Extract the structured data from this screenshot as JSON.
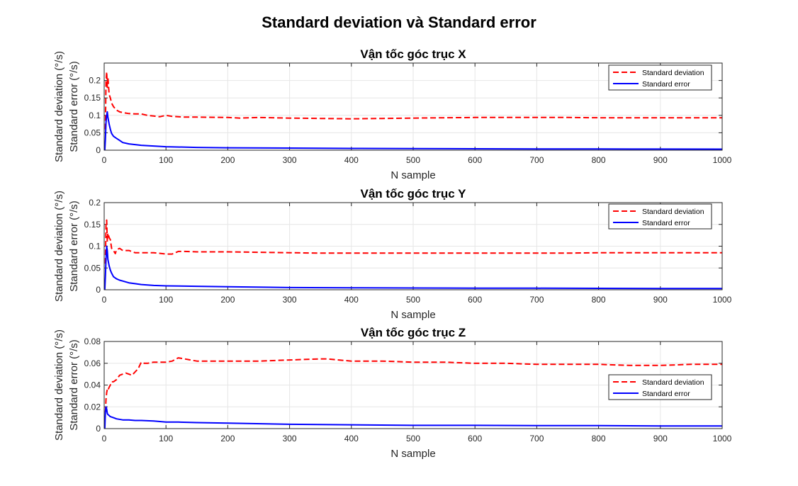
{
  "figure": {
    "title": "Standard deviation và Standard error"
  },
  "chart_data": [
    {
      "type": "line",
      "title": "Vận tốc góc trục X",
      "xlabel": "N sample",
      "ylabel": [
        "Standard deviation (°/s)",
        "Standard error (°/s)"
      ],
      "xlim": [
        0,
        1000
      ],
      "ylim": [
        0,
        0.25
      ],
      "xticks": [
        0,
        100,
        200,
        300,
        400,
        500,
        600,
        700,
        800,
        900,
        1000
      ],
      "yticks": [
        0,
        0.05,
        0.1,
        0.15,
        0.2
      ],
      "ytick_labels": [
        "0",
        "0.05",
        "0.1",
        "0.15",
        "0.2"
      ],
      "grid": true,
      "legend": "top-right",
      "series": [
        {
          "name": "Standard deviation",
          "color": "#ff0000",
          "style": "dashed",
          "x": [
            2,
            3,
            4,
            5,
            6,
            8,
            10,
            12,
            15,
            20,
            25,
            30,
            40,
            50,
            60,
            70,
            80,
            90,
            100,
            110,
            130,
            150,
            200,
            220,
            250,
            300,
            350,
            400,
            450,
            500,
            550,
            600,
            650,
            700,
            750,
            800,
            850,
            900,
            950,
            1000
          ],
          "y": [
            0.06,
            0.2,
            0.225,
            0.18,
            0.21,
            0.16,
            0.15,
            0.135,
            0.125,
            0.115,
            0.11,
            0.108,
            0.105,
            0.104,
            0.104,
            0.1,
            0.098,
            0.096,
            0.1,
            0.097,
            0.095,
            0.095,
            0.094,
            0.092,
            0.094,
            0.092,
            0.091,
            0.09,
            0.091,
            0.092,
            0.093,
            0.094,
            0.094,
            0.094,
            0.094,
            0.093,
            0.093,
            0.093,
            0.093,
            0.093
          ]
        },
        {
          "name": "Standard error",
          "color": "#0000ff",
          "style": "solid",
          "x": [
            1,
            2,
            3,
            4,
            5,
            6,
            8,
            10,
            12,
            15,
            20,
            25,
            30,
            40,
            50,
            60,
            80,
            100,
            150,
            200,
            300,
            400,
            500,
            600,
            700,
            800,
            900,
            1000
          ],
          "y": [
            0.0,
            0.03,
            0.08,
            0.1,
            0.11,
            0.095,
            0.075,
            0.06,
            0.048,
            0.04,
            0.034,
            0.028,
            0.022,
            0.018,
            0.016,
            0.014,
            0.012,
            0.01,
            0.008,
            0.007,
            0.006,
            0.005,
            0.0045,
            0.004,
            0.0037,
            0.0035,
            0.0033,
            0.003
          ]
        }
      ]
    },
    {
      "type": "line",
      "title": "Vận tốc góc trục Y",
      "xlabel": "N sample",
      "ylabel": [
        "Standard deviation (°/s)",
        "Standard error (°/s)"
      ],
      "xlim": [
        0,
        1000
      ],
      "ylim": [
        0,
        0.2
      ],
      "xticks": [
        0,
        100,
        200,
        300,
        400,
        500,
        600,
        700,
        800,
        900,
        1000
      ],
      "yticks": [
        0,
        0.05,
        0.1,
        0.15,
        0.2
      ],
      "ytick_labels": [
        "0",
        "0.05",
        "0.1",
        "0.15",
        "0.2"
      ],
      "grid": true,
      "legend": "top-right",
      "series": [
        {
          "name": "Standard deviation",
          "color": "#ff0000",
          "style": "dashed",
          "x": [
            2,
            3,
            4,
            5,
            6,
            8,
            10,
            12,
            15,
            18,
            20,
            25,
            30,
            40,
            50,
            60,
            80,
            100,
            110,
            120,
            130,
            150,
            200,
            250,
            300,
            350,
            400,
            450,
            500,
            550,
            600,
            650,
            700,
            750,
            800,
            850,
            900,
            950,
            1000
          ],
          "y": [
            0.06,
            0.15,
            0.16,
            0.11,
            0.13,
            0.12,
            0.115,
            0.095,
            0.09,
            0.083,
            0.092,
            0.095,
            0.09,
            0.09,
            0.085,
            0.085,
            0.085,
            0.082,
            0.082,
            0.088,
            0.088,
            0.087,
            0.087,
            0.086,
            0.085,
            0.084,
            0.084,
            0.084,
            0.084,
            0.084,
            0.084,
            0.084,
            0.084,
            0.084,
            0.085,
            0.085,
            0.085,
            0.085,
            0.085
          ]
        },
        {
          "name": "Standard error",
          "color": "#0000ff",
          "style": "solid",
          "x": [
            1,
            2,
            3,
            4,
            5,
            6,
            8,
            10,
            12,
            15,
            20,
            25,
            30,
            40,
            50,
            60,
            80,
            100,
            150,
            200,
            300,
            400,
            500,
            600,
            700,
            800,
            900,
            1000
          ],
          "y": [
            0.0,
            0.03,
            0.07,
            0.1,
            0.09,
            0.07,
            0.055,
            0.045,
            0.038,
            0.03,
            0.025,
            0.022,
            0.02,
            0.016,
            0.014,
            0.012,
            0.01,
            0.009,
            0.008,
            0.007,
            0.005,
            0.0045,
            0.004,
            0.0038,
            0.0035,
            0.0033,
            0.003,
            0.003
          ]
        }
      ]
    },
    {
      "type": "line",
      "title": "Vận tốc góc trục Z",
      "xlabel": "N sample",
      "ylabel": [
        "Standard deviation (°/s)",
        "Standard error (°/s)"
      ],
      "xlim": [
        0,
        1000
      ],
      "ylim": [
        0,
        0.08
      ],
      "xticks": [
        0,
        100,
        200,
        300,
        400,
        500,
        600,
        700,
        800,
        900,
        1000
      ],
      "yticks": [
        0,
        0.02,
        0.04,
        0.06,
        0.08
      ],
      "ytick_labels": [
        "0",
        "0.02",
        "0.04",
        "0.06",
        "0.08"
      ],
      "grid": true,
      "legend": "middle-right",
      "series": [
        {
          "name": "Standard deviation",
          "color": "#ff0000",
          "style": "dashed",
          "x": [
            2,
            3,
            4,
            5,
            6,
            8,
            10,
            12,
            15,
            20,
            25,
            30,
            35,
            40,
            45,
            50,
            55,
            60,
            65,
            70,
            80,
            100,
            110,
            120,
            130,
            150,
            200,
            250,
            300,
            350,
            360,
            400,
            450,
            500,
            550,
            600,
            650,
            700,
            750,
            800,
            850,
            900,
            950,
            1000
          ],
          "y": [
            0.015,
            0.027,
            0.033,
            0.036,
            0.035,
            0.038,
            0.04,
            0.043,
            0.043,
            0.045,
            0.049,
            0.05,
            0.051,
            0.05,
            0.049,
            0.052,
            0.055,
            0.061,
            0.06,
            0.06,
            0.061,
            0.061,
            0.062,
            0.065,
            0.064,
            0.062,
            0.062,
            0.062,
            0.063,
            0.064,
            0.064,
            0.062,
            0.062,
            0.061,
            0.061,
            0.06,
            0.06,
            0.059,
            0.059,
            0.059,
            0.058,
            0.058,
            0.059,
            0.059
          ]
        },
        {
          "name": "Standard error",
          "color": "#0000ff",
          "style": "solid",
          "x": [
            1,
            2,
            3,
            4,
            5,
            6,
            8,
            10,
            15,
            20,
            30,
            40,
            50,
            60,
            80,
            100,
            120,
            150,
            200,
            300,
            400,
            500,
            600,
            700,
            800,
            900,
            1000
          ],
          "y": [
            0.0,
            0.015,
            0.02,
            0.018,
            0.014,
            0.013,
            0.012,
            0.011,
            0.01,
            0.009,
            0.008,
            0.008,
            0.0075,
            0.0075,
            0.007,
            0.006,
            0.006,
            0.0055,
            0.005,
            0.004,
            0.0035,
            0.003,
            0.003,
            0.0028,
            0.0027,
            0.0025,
            0.0025
          ]
        }
      ]
    }
  ]
}
